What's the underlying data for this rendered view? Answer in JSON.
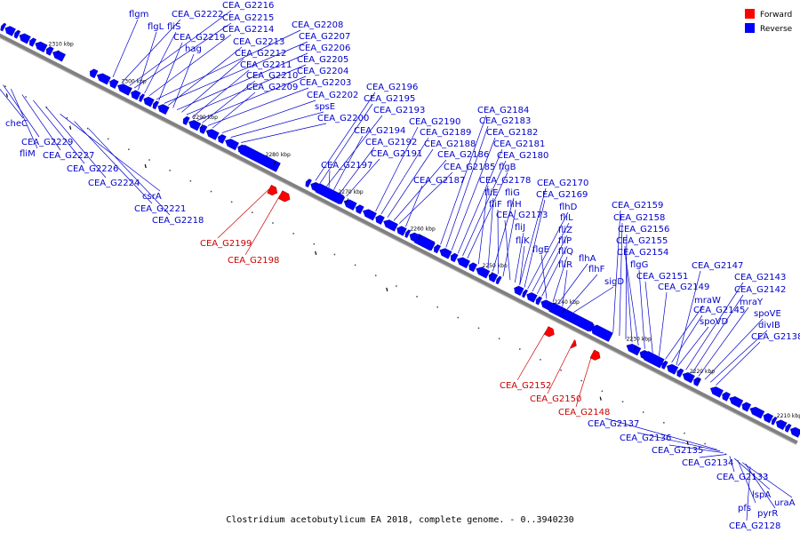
{
  "caption": "Clostridium acetobutylicum EA 2018, complete genome. - 0..3940230",
  "legend": [
    {
      "label": "Forward",
      "color": "#ff0000"
    },
    {
      "label": "Reverse",
      "color": "#0000ff"
    }
  ],
  "colors": {
    "forward": "#ff0000",
    "reverse": "#0000ff",
    "track": "#808080",
    "forward_line": "#cc0000",
    "reverse_line": "#0000cc"
  },
  "ticks": [
    "2310 kbp",
    "2300 kbp",
    "2290 kbp",
    "2280 kbp",
    "2270 kbp",
    "2260 kbp",
    "2250 kbp",
    "2240 kbp",
    "2230 kbp",
    "2220 kbp",
    "2210 kbp"
  ],
  "labels": [
    {
      "text": "flgm",
      "strand": "reverse"
    },
    {
      "text": "CEA_G2222",
      "strand": "reverse"
    },
    {
      "text": "CEA_G2216",
      "strand": "reverse"
    },
    {
      "text": "CEA_G2215",
      "strand": "reverse"
    },
    {
      "text": "flgL",
      "strand": "reverse"
    },
    {
      "text": "fliS",
      "strand": "reverse"
    },
    {
      "text": "CEA_G2214",
      "strand": "reverse"
    },
    {
      "text": "CEA_G2208",
      "strand": "reverse"
    },
    {
      "text": "CEA_G2219",
      "strand": "reverse"
    },
    {
      "text": "CEA_G2207",
      "strand": "reverse"
    },
    {
      "text": "CEA_G2213",
      "strand": "reverse"
    },
    {
      "text": "hag",
      "strand": "reverse"
    },
    {
      "text": "CEA_G2206",
      "strand": "reverse"
    },
    {
      "text": "CEA_G2212",
      "strand": "reverse"
    },
    {
      "text": "CEA_G2205",
      "strand": "reverse"
    },
    {
      "text": "CEA_G2211",
      "strand": "reverse"
    },
    {
      "text": "CEA_G2204",
      "strand": "reverse"
    },
    {
      "text": "CEA_G2210",
      "strand": "reverse"
    },
    {
      "text": "CEA_G2203",
      "strand": "reverse"
    },
    {
      "text": "CEA_G2209",
      "strand": "reverse"
    },
    {
      "text": "CEA_G2196",
      "strand": "reverse"
    },
    {
      "text": "CEA_G2202",
      "strand": "reverse"
    },
    {
      "text": "CEA_G2195",
      "strand": "reverse"
    },
    {
      "text": "spsE",
      "strand": "reverse"
    },
    {
      "text": "CEA_G2193",
      "strand": "reverse"
    },
    {
      "text": "CEA_G2184",
      "strand": "reverse"
    },
    {
      "text": "CEA_G2200",
      "strand": "reverse"
    },
    {
      "text": "CEA_G2190",
      "strand": "reverse"
    },
    {
      "text": "CEA_G2183",
      "strand": "reverse"
    },
    {
      "text": "CEA_G2194",
      "strand": "reverse"
    },
    {
      "text": "CEA_G2189",
      "strand": "reverse"
    },
    {
      "text": "CEA_G2182",
      "strand": "reverse"
    },
    {
      "text": "CEA_G2192",
      "strand": "reverse"
    },
    {
      "text": "CEA_G2188",
      "strand": "reverse"
    },
    {
      "text": "CEA_G2181",
      "strand": "reverse"
    },
    {
      "text": "CEA_G2191",
      "strand": "reverse"
    },
    {
      "text": "CEA_G2186",
      "strand": "reverse"
    },
    {
      "text": "CEA_G2180",
      "strand": "reverse"
    },
    {
      "text": "CEA_G2197",
      "strand": "reverse"
    },
    {
      "text": "CEA_G2185",
      "strand": "reverse"
    },
    {
      "text": "flgB",
      "strand": "reverse"
    },
    {
      "text": "CEA_G2187",
      "strand": "reverse"
    },
    {
      "text": "CEA_G2178",
      "strand": "reverse"
    },
    {
      "text": "CEA_G2170",
      "strand": "reverse"
    },
    {
      "text": "fliE",
      "strand": "reverse"
    },
    {
      "text": "fliG",
      "strand": "reverse"
    },
    {
      "text": "CEA_G2169",
      "strand": "reverse"
    },
    {
      "text": "fliF",
      "strand": "reverse"
    },
    {
      "text": "fliH",
      "strand": "reverse"
    },
    {
      "text": "flhD",
      "strand": "reverse"
    },
    {
      "text": "CEA_G2159",
      "strand": "reverse"
    },
    {
      "text": "CEA_G2173",
      "strand": "reverse"
    },
    {
      "text": "fliL",
      "strand": "reverse"
    },
    {
      "text": "CEA_G2158",
      "strand": "reverse"
    },
    {
      "text": "fliJ",
      "strand": "reverse"
    },
    {
      "text": "fliZ",
      "strand": "reverse"
    },
    {
      "text": "CEA_G2156",
      "strand": "reverse"
    },
    {
      "text": "fliK",
      "strand": "reverse"
    },
    {
      "text": "fliP",
      "strand": "reverse"
    },
    {
      "text": "CEA_G2155",
      "strand": "reverse"
    },
    {
      "text": "flgE",
      "strand": "reverse"
    },
    {
      "text": "fliQ",
      "strand": "reverse"
    },
    {
      "text": "CEA_G2154",
      "strand": "reverse"
    },
    {
      "text": "flhA",
      "strand": "reverse"
    },
    {
      "text": "fliR",
      "strand": "reverse"
    },
    {
      "text": "flgG",
      "strand": "reverse"
    },
    {
      "text": "CEA_G2147",
      "strand": "reverse"
    },
    {
      "text": "flhF",
      "strand": "reverse"
    },
    {
      "text": "CEA_G2151",
      "strand": "reverse"
    },
    {
      "text": "CEA_G2143",
      "strand": "reverse"
    },
    {
      "text": "sigD",
      "strand": "reverse"
    },
    {
      "text": "CEA_G2149",
      "strand": "reverse"
    },
    {
      "text": "CEA_G2142",
      "strand": "reverse"
    },
    {
      "text": "mraW",
      "strand": "reverse"
    },
    {
      "text": "mraY",
      "strand": "reverse"
    },
    {
      "text": "CEA_G2145",
      "strand": "reverse"
    },
    {
      "text": "spoVE",
      "strand": "reverse"
    },
    {
      "text": "spoVD",
      "strand": "reverse"
    },
    {
      "text": "divIB",
      "strand": "reverse"
    },
    {
      "text": "CEA_G2138",
      "strand": "reverse"
    },
    {
      "text": "cheC",
      "strand": "reverse"
    },
    {
      "text": "CEA_G2229",
      "strand": "reverse"
    },
    {
      "text": "fliM",
      "strand": "reverse"
    },
    {
      "text": "CEA_G2227",
      "strand": "reverse"
    },
    {
      "text": "CEA_G2226",
      "strand": "reverse"
    },
    {
      "text": "CEA_G2224",
      "strand": "reverse"
    },
    {
      "text": "csrA",
      "strand": "reverse"
    },
    {
      "text": "CEA_G2221",
      "strand": "reverse"
    },
    {
      "text": "CEA_G2218",
      "strand": "reverse"
    },
    {
      "text": "CEA_G2199",
      "strand": "forward"
    },
    {
      "text": "CEA_G2198",
      "strand": "forward"
    },
    {
      "text": "CEA_G2152",
      "strand": "forward"
    },
    {
      "text": "CEA_G2150",
      "strand": "forward"
    },
    {
      "text": "CEA_G2148",
      "strand": "forward"
    },
    {
      "text": "CEA_G2137",
      "strand": "reverse"
    },
    {
      "text": "CEA_G2136",
      "strand": "reverse"
    },
    {
      "text": "CEA_G2135",
      "strand": "reverse"
    },
    {
      "text": "CEA_G2134",
      "strand": "reverse"
    },
    {
      "text": "CEA_G2133",
      "strand": "reverse"
    },
    {
      "text": "lspA",
      "strand": "reverse"
    },
    {
      "text": "pfs",
      "strand": "reverse"
    },
    {
      "text": "uraA",
      "strand": "reverse"
    },
    {
      "text": "pyrR",
      "strand": "reverse"
    },
    {
      "text": "CEA_G2128",
      "strand": "reverse"
    }
  ]
}
